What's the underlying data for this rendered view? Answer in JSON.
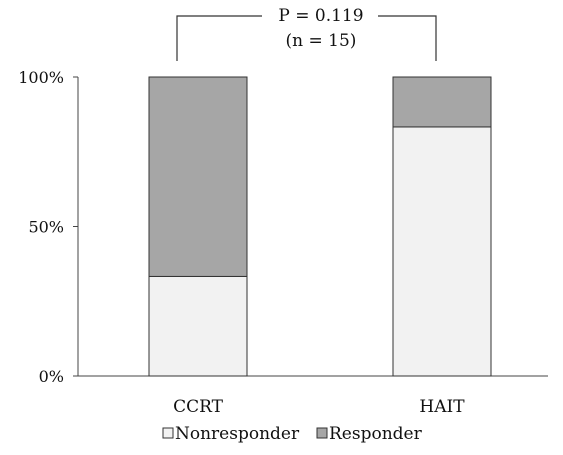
{
  "chart_data": {
    "type": "bar",
    "stacked": true,
    "categories": [
      "CCRT",
      "HAIT"
    ],
    "series": [
      {
        "name": "Nonresponder",
        "values": [
          33.3,
          83.3
        ],
        "color": "#f2f2f2"
      },
      {
        "name": "Responder",
        "values": [
          66.7,
          16.7
        ],
        "color": "#a6a6a6"
      }
    ],
    "y_ticks": [
      "0%",
      "50%",
      "100%"
    ],
    "ylim": [
      0,
      100
    ],
    "legend_position": "bottom",
    "annotation": {
      "line1": "P = 0.119",
      "line2": "(n = 15)",
      "bracket": [
        "CCRT",
        "HAIT"
      ]
    }
  }
}
